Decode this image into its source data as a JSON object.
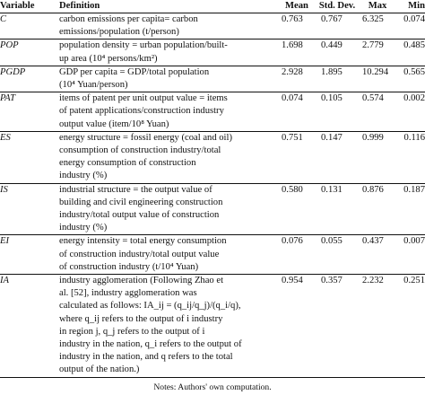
{
  "table": {
    "headers": {
      "variable": "Variable",
      "definition": "Definition",
      "mean": "Mean",
      "std": "Std. Dev.",
      "max": "Max",
      "min": "Min"
    },
    "rows": [
      {
        "variable": "C",
        "definition_lines": [
          "carbon emissions per capita= carbon",
          "emissions/population (t/person)"
        ],
        "mean": "0.763",
        "std": "0.767",
        "max": "6.325",
        "min": "0.074"
      },
      {
        "variable": "POP",
        "definition_lines": [
          "population density = urban population/built-",
          "up area (10⁴ persons/km²)"
        ],
        "mean": "1.698",
        "std": "0.449",
        "max": "2.779",
        "min": "0.485"
      },
      {
        "variable": "PGDP",
        "definition_lines": [
          "GDP per capita = GDP/total population",
          "(10⁴ Yuan/person)"
        ],
        "mean": "2.928",
        "std": "1.895",
        "max": "10.294",
        "min": "0.565"
      },
      {
        "variable": "PAT",
        "definition_lines": [
          "items of patent per unit output value = items",
          "of patent applications/construction industry",
          "output value (item/10⁸ Yuan)"
        ],
        "mean": "0.074",
        "std": "0.105",
        "max": "0.574",
        "min": "0.002"
      },
      {
        "variable": "ES",
        "definition_lines": [
          "energy structure = fossil energy (coal and oil)",
          "consumption of construction industry/total",
          "energy consumption of construction",
          "industry (%)"
        ],
        "mean": "0.751",
        "std": "0.147",
        "max": "0.999",
        "min": "0.116"
      },
      {
        "variable": "IS",
        "definition_lines": [
          "industrial structure = the output value of",
          "building and civil engineering construction",
          "industry/total output value of construction",
          "industry (%)"
        ],
        "mean": "0.580",
        "std": "0.131",
        "max": "0.876",
        "min": "0.187"
      },
      {
        "variable": "EI",
        "definition_lines": [
          "energy intensity = total energy consumption",
          "of construction industry/total output value",
          "of construction industry (t/10⁴ Yuan)"
        ],
        "mean": "0.076",
        "std": "0.055",
        "max": "0.437",
        "min": "0.007"
      },
      {
        "variable": "IA",
        "definition_lines": [
          "industry agglomeration (Following Zhao et",
          "al. [52], industry agglomeration was",
          "calculated as follows: IA_ij = (q_ij/q_j)/(q_i/q),",
          "where  q_ij  refers to the output of  i  industry",
          "in region  j,  q_j  refers to the output of  i",
          "industry in the nation,  q_i  refers to the output of",
          "industry in the nation, and  q  refers to the total",
          "output of the nation.)"
        ],
        "mean": "0.954",
        "std": "0.357",
        "max": "2.232",
        "min": "0.251"
      }
    ]
  },
  "note": "Notes: Authors' own computation."
}
